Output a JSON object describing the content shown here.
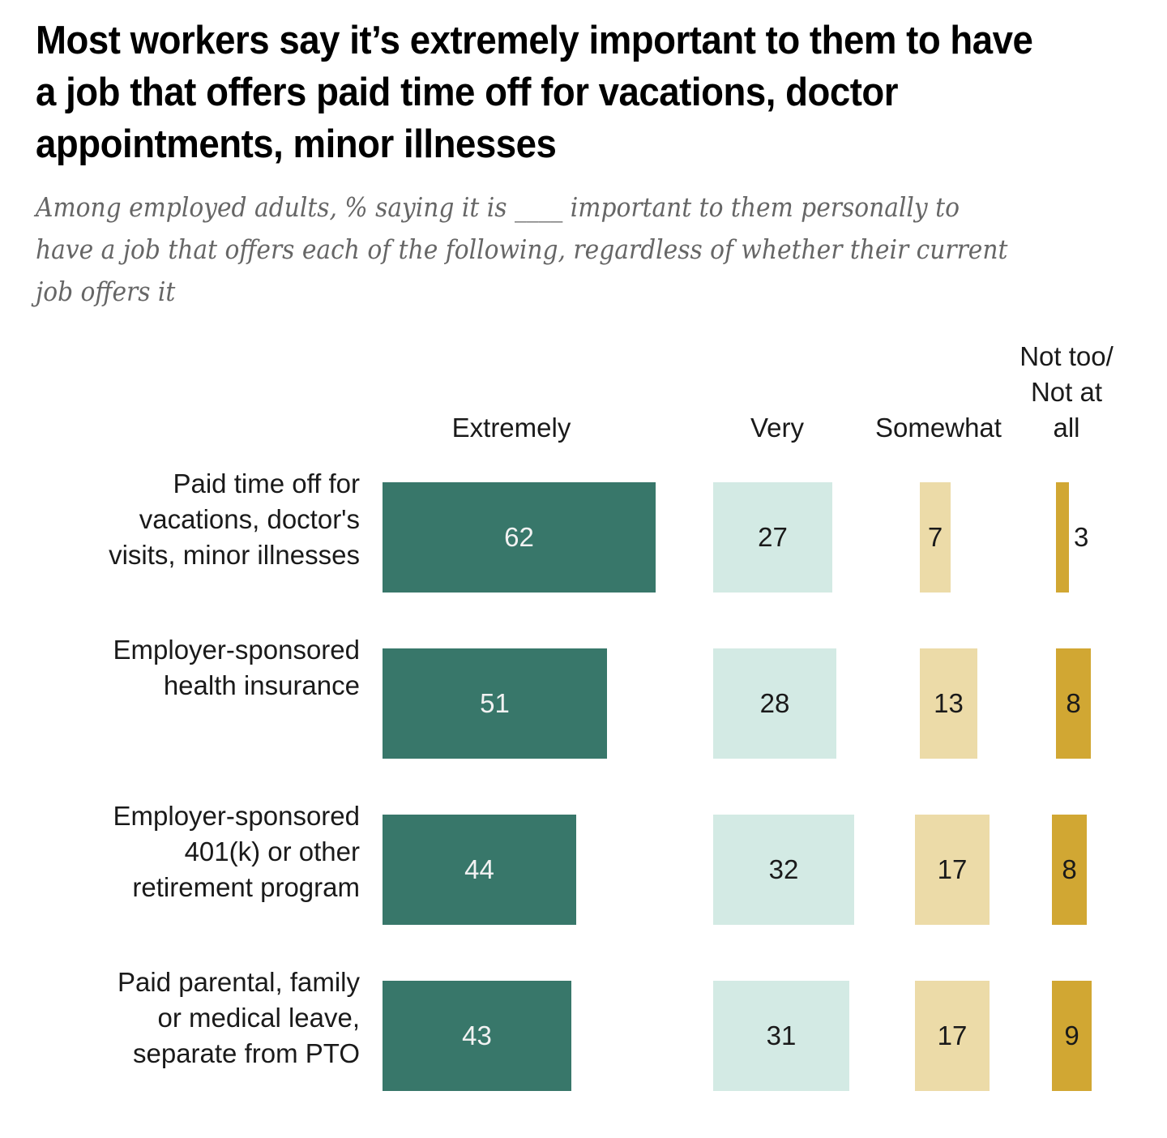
{
  "chart_data": {
    "type": "bar",
    "title": "Most workers say it’s extremely important to them to have a job that offers paid time off for vacations, doctor appointments, minor illnesses",
    "subtitle": "Among employed adults, % saying it is ____ important to them personally to have a job that offers each of the following, regardless of whether their current job offers it",
    "categories": [
      "Paid time off for vacations, doctor's visits, minor illnesses",
      "Employer-sponsored health insurance",
      "Employer-sponsored 401(k) or other retirement program",
      "Paid parental, family or medical leave, separate from PTO"
    ],
    "category_lines": [
      [
        "Paid time off for",
        "vacations, doctor's",
        "visits, minor illnesses"
      ],
      [
        "Employer-sponsored",
        "health insurance"
      ],
      [
        "Employer-sponsored",
        "401(k) or other",
        "retirement program"
      ],
      [
        "Paid parental, family",
        "or medical leave,",
        "separate from PTO"
      ]
    ],
    "series": [
      {
        "name": "Extremely",
        "name_lines": [
          "Extremely"
        ],
        "color": "#38776a",
        "label_color": "#f2f2f2",
        "values": [
          62,
          51,
          44,
          43
        ]
      },
      {
        "name": "Very",
        "name_lines": [
          "Very"
        ],
        "color": "#d3eae4",
        "label_color": "#1a1a1a",
        "values": [
          27,
          28,
          32,
          31
        ]
      },
      {
        "name": "Somewhat",
        "name_lines": [
          "Somewhat"
        ],
        "color": "#ecdba8",
        "label_color": "#1a1a1a",
        "values": [
          7,
          13,
          17,
          17
        ]
      },
      {
        "name": "Not too/Not at all",
        "name_lines": [
          "Not too/",
          "Not at",
          "all"
        ],
        "color": "#d1a733",
        "label_color": "#1a1a1a",
        "values": [
          3,
          8,
          8,
          9
        ]
      }
    ],
    "xlabel": "",
    "ylabel": "",
    "xlim": [
      0,
      100
    ],
    "grid": false,
    "legend": "column-headers-top"
  }
}
